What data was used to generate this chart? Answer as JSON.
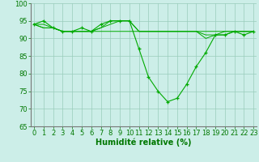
{
  "x": [
    0,
    1,
    2,
    3,
    4,
    5,
    6,
    7,
    8,
    9,
    10,
    11,
    12,
    13,
    14,
    15,
    16,
    17,
    18,
    19,
    20,
    21,
    22,
    23
  ],
  "series": [
    [
      94,
      95,
      93,
      92,
      92,
      93,
      92,
      94,
      95,
      95,
      95,
      87,
      79,
      75,
      72,
      73,
      77,
      82,
      86,
      91,
      91,
      92,
      91,
      92
    ],
    [
      94,
      93,
      93,
      92,
      92,
      92,
      92,
      93,
      94,
      95,
      95,
      92,
      92,
      92,
      92,
      92,
      92,
      92,
      90,
      91,
      91,
      92,
      92,
      92
    ],
    [
      94,
      93,
      93,
      92,
      92,
      92,
      92,
      93,
      95,
      95,
      95,
      92,
      92,
      92,
      92,
      92,
      92,
      92,
      91,
      91,
      92,
      92,
      92,
      92
    ],
    [
      94,
      94,
      93,
      92,
      92,
      92,
      92,
      92,
      92,
      92,
      92,
      92,
      92,
      92,
      92,
      92,
      92,
      92,
      92,
      92,
      92,
      92,
      92,
      92
    ]
  ],
  "xlabel": "Humidité relative (%)",
  "ylim": [
    65,
    100
  ],
  "xlim": [
    0,
    23
  ],
  "yticks": [
    65,
    70,
    75,
    80,
    85,
    90,
    95,
    100
  ],
  "xticks": [
    0,
    1,
    2,
    3,
    4,
    5,
    6,
    7,
    8,
    9,
    10,
    11,
    12,
    13,
    14,
    15,
    16,
    17,
    18,
    19,
    20,
    21,
    22,
    23
  ],
  "line_color": "#00aa00",
  "bg_color": "#cceee8",
  "grid_color": "#99ccbb",
  "font_color": "#007700",
  "font_size": 6,
  "xlabel_fontsize": 7
}
